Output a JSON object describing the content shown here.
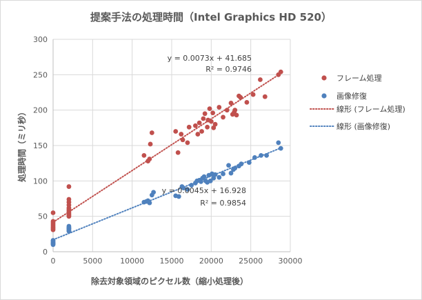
{
  "chart_data": {
    "type": "scatter",
    "title": "提案手法の処理時間（Intel Graphics HD 520）",
    "xlabel": "除去対象領域のピクセル数（縮小処理後）",
    "ylabel": "処理時間（ミリ秒）",
    "xlim": [
      0,
      30000
    ],
    "ylim": [
      0,
      300
    ],
    "x_ticks": [
      "0",
      "5000",
      "10000",
      "15000",
      "20000",
      "25000",
      "30000"
    ],
    "y_ticks": [
      "0",
      "50",
      "100",
      "150",
      "200",
      "250",
      "300"
    ],
    "grid": true,
    "legend_position": "right",
    "series": [
      {
        "name": "フレーム処理",
        "color": "#c0504d",
        "points": [
          [
            0,
            55
          ],
          [
            0,
            43
          ],
          [
            0,
            41
          ],
          [
            0,
            39
          ],
          [
            0,
            37
          ],
          [
            0,
            35
          ],
          [
            0,
            33
          ],
          [
            0,
            31
          ],
          [
            2000,
            92
          ],
          [
            2000,
            74
          ],
          [
            2000,
            70
          ],
          [
            2000,
            66
          ],
          [
            2000,
            62
          ],
          [
            2000,
            60
          ],
          [
            2000,
            58
          ],
          [
            2000,
            56
          ],
          [
            2000,
            54
          ],
          [
            2000,
            52
          ],
          [
            2000,
            50
          ],
          [
            11500,
            136
          ],
          [
            12000,
            128
          ],
          [
            12200,
            131
          ],
          [
            12300,
            152
          ],
          [
            12500,
            168
          ],
          [
            15500,
            170
          ],
          [
            15800,
            140
          ],
          [
            16200,
            166
          ],
          [
            16400,
            158
          ],
          [
            17000,
            154
          ],
          [
            17200,
            176
          ],
          [
            18000,
            178
          ],
          [
            18300,
            166
          ],
          [
            18500,
            182
          ],
          [
            18800,
            170
          ],
          [
            19000,
            188
          ],
          [
            19200,
            195
          ],
          [
            19500,
            176
          ],
          [
            19600,
            186
          ],
          [
            19800,
            202
          ],
          [
            20000,
            184
          ],
          [
            20200,
            196
          ],
          [
            20300,
            175
          ],
          [
            20500,
            180
          ],
          [
            21000,
            204
          ],
          [
            21500,
            190
          ],
          [
            22000,
            200
          ],
          [
            22500,
            210
          ],
          [
            22700,
            194
          ],
          [
            22900,
            197
          ],
          [
            23000,
            200
          ],
          [
            23200,
            193
          ],
          [
            23500,
            220
          ],
          [
            23700,
            218
          ],
          [
            24500,
            211
          ],
          [
            25300,
            222
          ],
          [
            26200,
            243
          ],
          [
            26800,
            219
          ],
          [
            28500,
            250
          ],
          [
            28800,
            254
          ]
        ],
        "trendline": {
          "name": "線形 (フレーム処理)",
          "slope": 0.0073,
          "intercept": 41.685,
          "equation": "y = 0.0073x + 41.685",
          "r2": "R² = 0.9746"
        }
      },
      {
        "name": "画像修復",
        "color": "#4f81bd",
        "points": [
          [
            0,
            16
          ],
          [
            0,
            15
          ],
          [
            0,
            13
          ],
          [
            0,
            12
          ],
          [
            0,
            11
          ],
          [
            0,
            10
          ],
          [
            2000,
            36
          ],
          [
            2000,
            34
          ],
          [
            2000,
            33
          ],
          [
            2000,
            32
          ],
          [
            2000,
            30
          ],
          [
            2000,
            29
          ],
          [
            11500,
            70
          ],
          [
            11800,
            71
          ],
          [
            12000,
            72
          ],
          [
            12200,
            69
          ],
          [
            12500,
            80
          ],
          [
            12700,
            84
          ],
          [
            15500,
            79
          ],
          [
            15900,
            78
          ],
          [
            16300,
            92
          ],
          [
            16500,
            90
          ],
          [
            17000,
            88
          ],
          [
            17500,
            94
          ],
          [
            18000,
            97
          ],
          [
            18200,
            100
          ],
          [
            18500,
            101
          ],
          [
            18700,
            99
          ],
          [
            18900,
            104
          ],
          [
            19100,
            106
          ],
          [
            19300,
            100
          ],
          [
            19500,
            98
          ],
          [
            19700,
            108
          ],
          [
            19900,
            100
          ],
          [
            20100,
            110
          ],
          [
            20300,
            104
          ],
          [
            20500,
            109
          ],
          [
            21000,
            105
          ],
          [
            21500,
            110
          ],
          [
            22200,
            122
          ],
          [
            22500,
            111
          ],
          [
            22800,
            116
          ],
          [
            23000,
            118
          ],
          [
            23500,
            121
          ],
          [
            23800,
            124
          ],
          [
            24800,
            126
          ],
          [
            25500,
            133
          ],
          [
            26300,
            136
          ],
          [
            27000,
            136
          ],
          [
            28500,
            154
          ],
          [
            28800,
            146
          ]
        ],
        "trendline": {
          "name": "線形 (画像修復)",
          "slope": 0.0045,
          "intercept": 16.928,
          "equation": "y = 0.0045x + 16.928",
          "r2": "R² = 0.9854"
        }
      }
    ]
  }
}
